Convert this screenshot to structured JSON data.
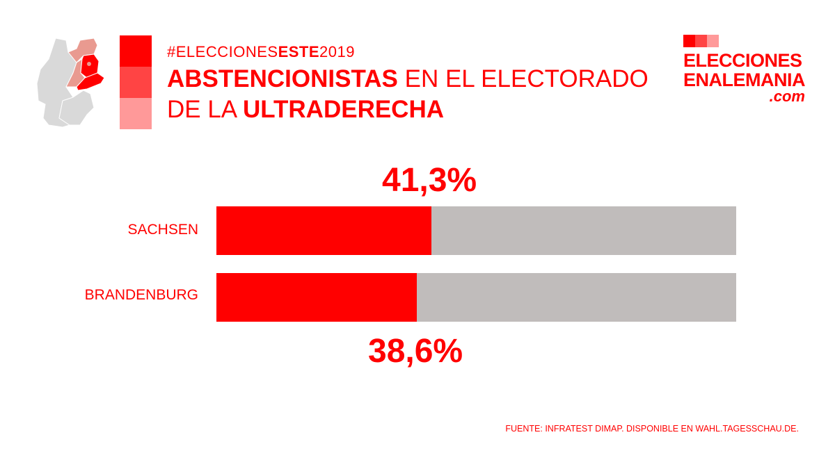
{
  "header": {
    "hashtag_pre": "#ELECCIONES",
    "hashtag_bold": "ESTE",
    "hashtag_post": "2019",
    "title_bold_1": "ABSTENCIONISTAS",
    "title_plain_1": " EN EL ELECTORADO",
    "title_plain_2": "DE LA ",
    "title_bold_2": "ULTRADERECHA"
  },
  "logo": {
    "line1": "ELECCIONES",
    "line2": "ENALEMANIA",
    "line3": ".com"
  },
  "colors": {
    "accent": "#ff0000",
    "mid": "#ff4444",
    "light": "#ff9999",
    "track": "#c0bcbb",
    "map_gray": "#d9d9d9",
    "map_light": "#e99a90"
  },
  "chart_data": {
    "type": "bar",
    "orientation": "horizontal",
    "title": "ABSTENCIONISTAS EN EL ELECTORADO DE LA ULTRADERECHA",
    "categories": [
      "SACHSEN",
      "BRANDENBURG"
    ],
    "values": [
      41.3,
      38.6
    ],
    "value_labels": [
      "41,3%",
      "38,6%"
    ],
    "xlim": [
      0,
      100
    ],
    "unit": "%"
  },
  "footer": {
    "source": "FUENTE: INFRATEST DIMAP. DISPONIBLE EN WAHL.TAGESSCHAU.DE."
  }
}
